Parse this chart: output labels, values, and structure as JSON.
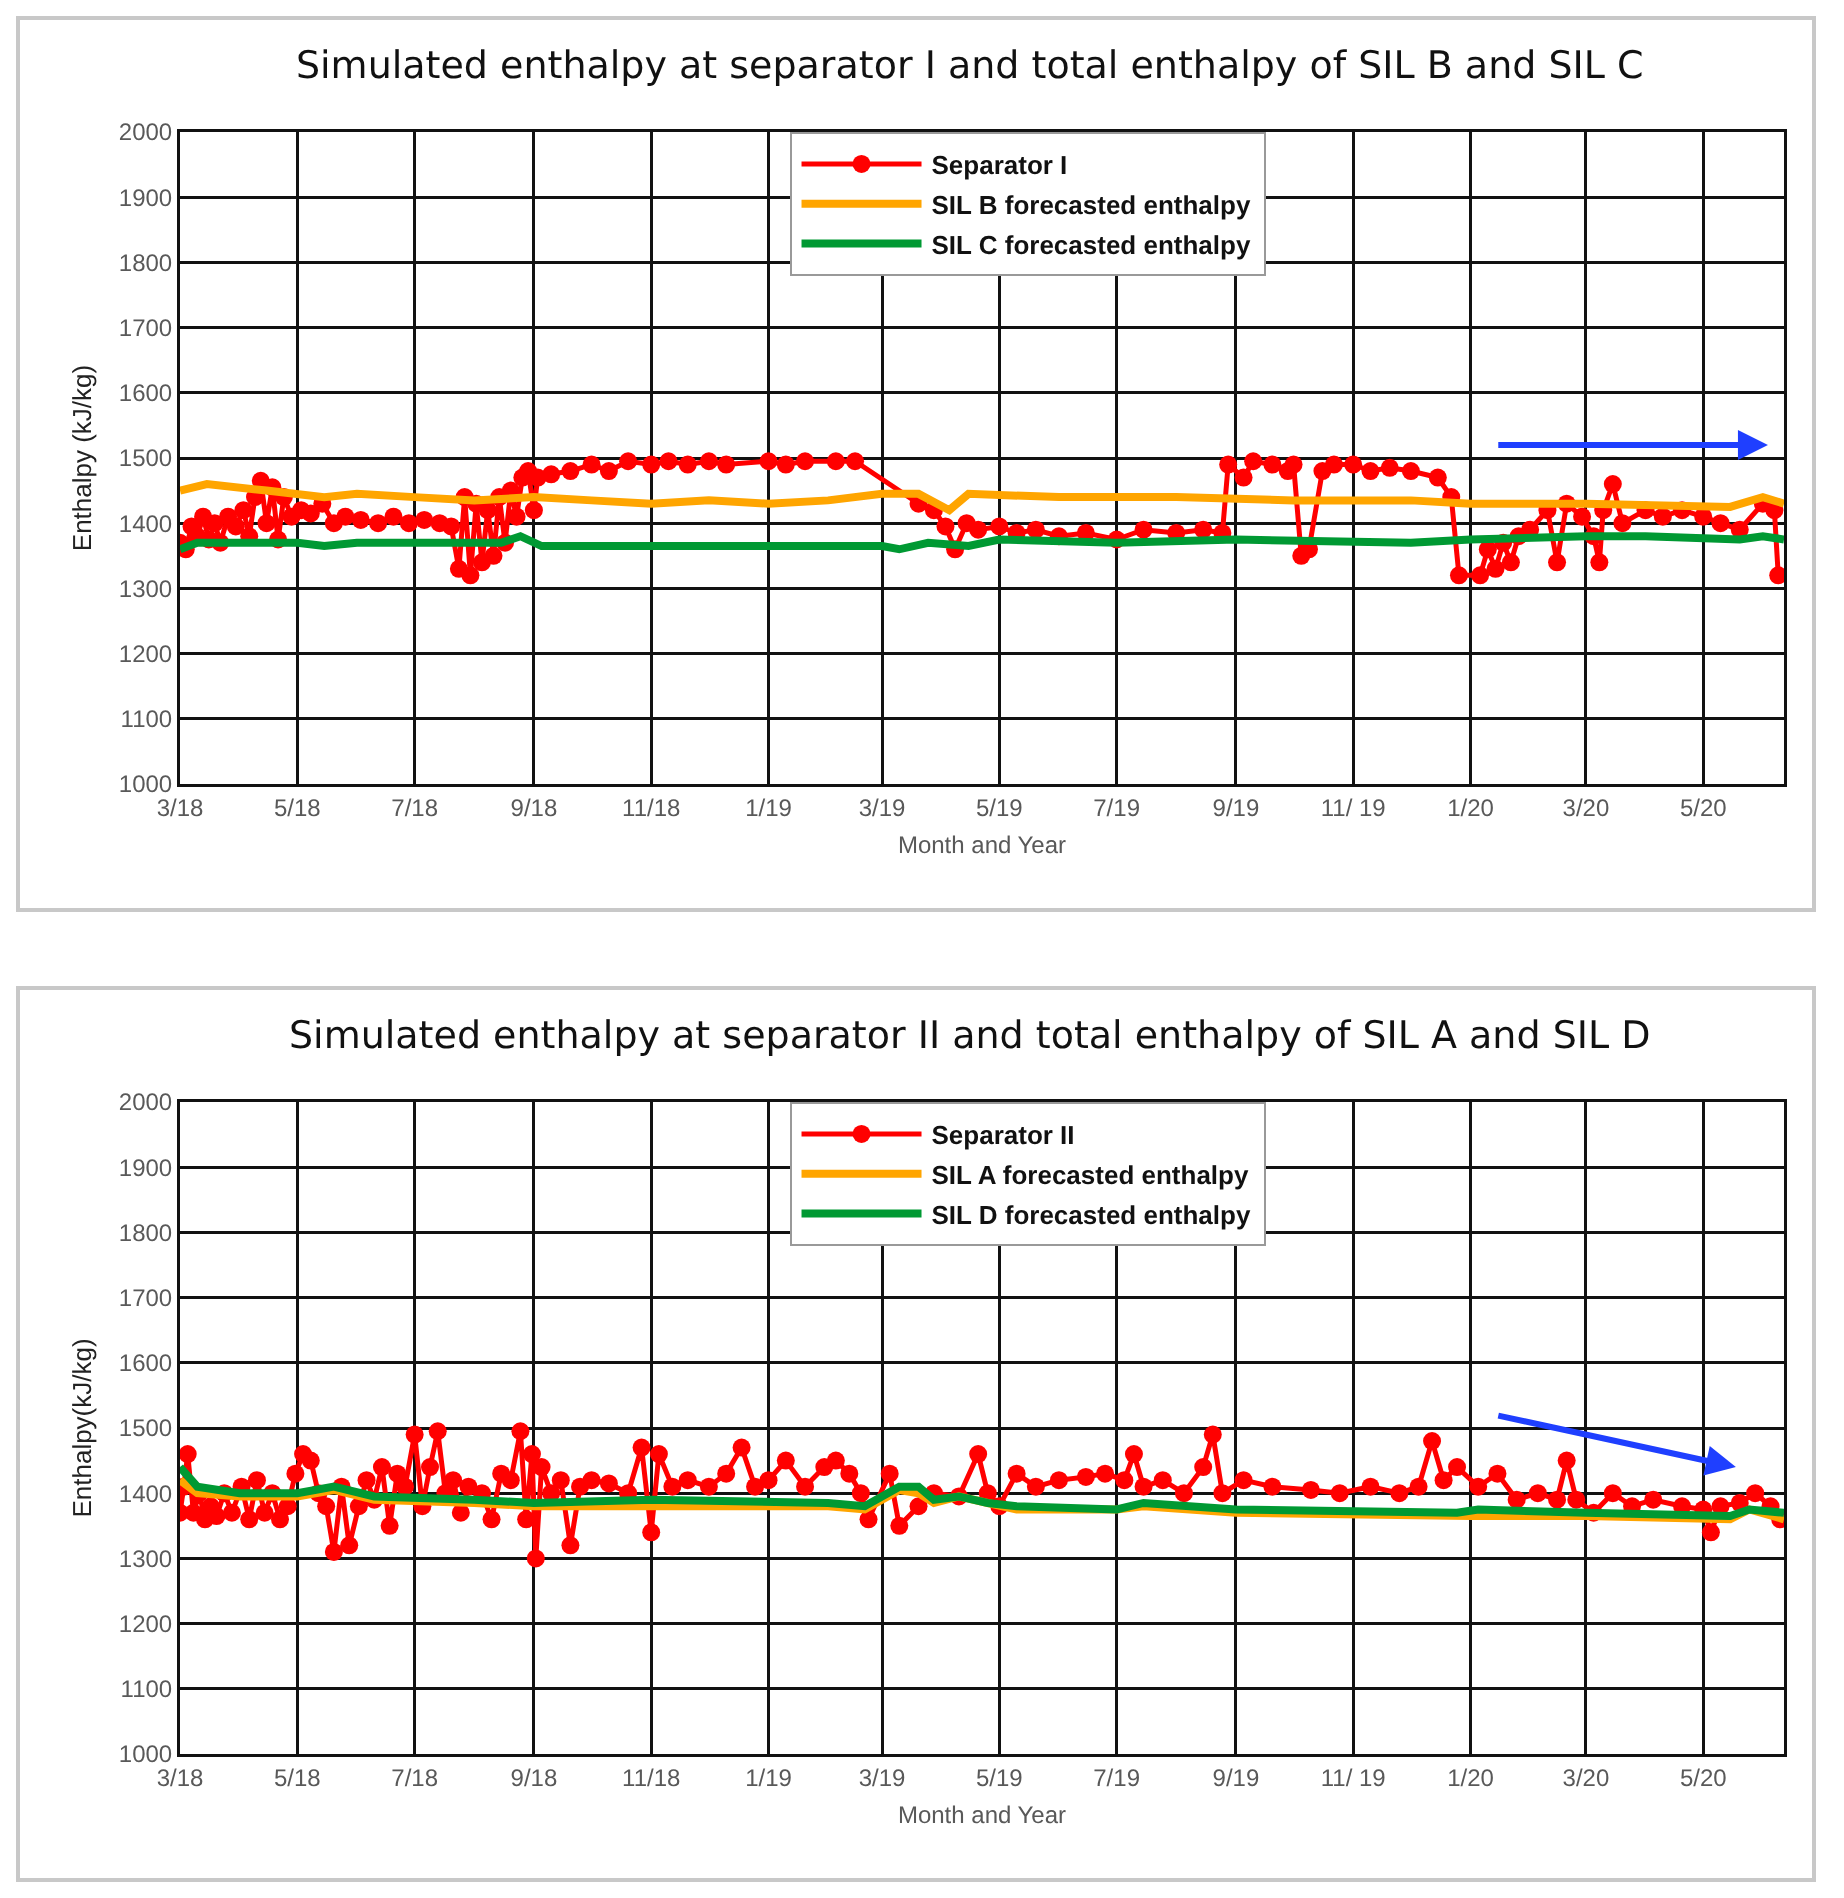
{
  "chart_data": [
    {
      "type": "line",
      "title": "Simulated enthalpy at separator I and total enthalpy of SIL B and SIL C",
      "xlabel": "Month and Year",
      "ylabel": "Enthalpy (kJ/kg)",
      "xlim": [
        "2018-03-01",
        "2020-06-12"
      ],
      "xticks": [
        {
          "value": "2018-03-01",
          "label": "3/18"
        },
        {
          "value": "2018-05-01",
          "label": "5/18"
        },
        {
          "value": "2018-07-01",
          "label": "7/18"
        },
        {
          "value": "2018-09-01",
          "label": "9/18"
        },
        {
          "value": "2018-11-01",
          "label": "11/18"
        },
        {
          "value": "2019-01-01",
          "label": "1/19"
        },
        {
          "value": "2019-03-01",
          "label": "3/19"
        },
        {
          "value": "2019-05-01",
          "label": "5/19"
        },
        {
          "value": "2019-07-01",
          "label": "7/19"
        },
        {
          "value": "2019-09-01",
          "label": "9/19"
        },
        {
          "value": "2019-11-01",
          "label": "11/ 19"
        },
        {
          "value": "2020-01-01",
          "label": "1/20"
        },
        {
          "value": "2020-03-01",
          "label": "3/20"
        },
        {
          "value": "2020-05-01",
          "label": "5/20"
        }
      ],
      "ylim": [
        1000,
        2000
      ],
      "yticks": [
        1000,
        1100,
        1200,
        1300,
        1400,
        1500,
        1600,
        1700,
        1800,
        1900,
        2000
      ],
      "grid": true,
      "legend": "top",
      "series": [
        {
          "name": "Separator I",
          "color": "#ff0000",
          "marker": "circle",
          "x": [
            "2018-03-01",
            "2018-03-04",
            "2018-03-07",
            "2018-03-10",
            "2018-03-13",
            "2018-03-16",
            "2018-03-19",
            "2018-03-22",
            "2018-03-26",
            "2018-03-30",
            "2018-04-03",
            "2018-04-06",
            "2018-04-09",
            "2018-04-12",
            "2018-04-15",
            "2018-04-18",
            "2018-04-21",
            "2018-04-24",
            "2018-04-28",
            "2018-05-03",
            "2018-05-08",
            "2018-05-14",
            "2018-05-20",
            "2018-05-26",
            "2018-06-03",
            "2018-06-12",
            "2018-06-20",
            "2018-06-28",
            "2018-07-06",
            "2018-07-14",
            "2018-07-20",
            "2018-07-24",
            "2018-07-27",
            "2018-07-30",
            "2018-08-02",
            "2018-08-05",
            "2018-08-08",
            "2018-08-11",
            "2018-08-14",
            "2018-08-17",
            "2018-08-20",
            "2018-08-23",
            "2018-08-26",
            "2018-08-29",
            "2018-09-01",
            "2018-09-03",
            "2018-09-10",
            "2018-09-20",
            "2018-10-01",
            "2018-10-10",
            "2018-10-20",
            "2018-11-01",
            "2018-11-10",
            "2018-11-20",
            "2018-12-01",
            "2018-12-10",
            "2019-01-01",
            "2019-01-10",
            "2019-01-20",
            "2019-02-05",
            "2019-02-15",
            "2019-03-20",
            "2019-03-28",
            "2019-04-03",
            "2019-04-08",
            "2019-04-14",
            "2019-04-20",
            "2019-05-01",
            "2019-05-10",
            "2019-05-20",
            "2019-06-01",
            "2019-06-15",
            "2019-07-01",
            "2019-07-15",
            "2019-08-01",
            "2019-08-15",
            "2019-08-25",
            "2019-08-28",
            "2019-09-05",
            "2019-09-10",
            "2019-09-20",
            "2019-09-28",
            "2019-10-01",
            "2019-10-05",
            "2019-10-09",
            "2019-10-16",
            "2019-10-22",
            "2019-11-01",
            "2019-11-10",
            "2019-11-20",
            "2019-12-01",
            "2019-12-15",
            "2019-12-22",
            "2019-12-26",
            "2020-01-06",
            "2020-01-10",
            "2020-01-14",
            "2020-01-18",
            "2020-01-22",
            "2020-01-26",
            "2020-02-01",
            "2020-02-10",
            "2020-02-15",
            "2020-02-20",
            "2020-02-28",
            "2020-03-05",
            "2020-03-08",
            "2020-03-10",
            "2020-03-15",
            "2020-03-20",
            "2020-04-01",
            "2020-04-10",
            "2020-04-20",
            "2020-05-01",
            "2020-05-10",
            "2020-05-20",
            "2020-06-01",
            "2020-06-07",
            "2020-06-09"
          ],
          "values": [
            1370,
            1360,
            1395,
            1380,
            1410,
            1375,
            1400,
            1370,
            1410,
            1395,
            1420,
            1380,
            1440,
            1465,
            1400,
            1455,
            1375,
            1440,
            1410,
            1420,
            1415,
            1430,
            1400,
            1410,
            1405,
            1400,
            1410,
            1400,
            1405,
            1400,
            1395,
            1330,
            1440,
            1320,
            1430,
            1340,
            1420,
            1350,
            1440,
            1370,
            1450,
            1410,
            1470,
            1480,
            1420,
            1470,
            1475,
            1480,
            1490,
            1480,
            1495,
            1490,
            1495,
            1490,
            1495,
            1490,
            1495,
            1490,
            1495,
            1495,
            1495,
            1430,
            1420,
            1395,
            1360,
            1400,
            1390,
            1395,
            1385,
            1390,
            1380,
            1385,
            1375,
            1390,
            1385,
            1390,
            1385,
            1490,
            1470,
            1495,
            1490,
            1480,
            1490,
            1350,
            1360,
            1480,
            1490,
            1490,
            1480,
            1485,
            1480,
            1470,
            1440,
            1320,
            1320,
            1360,
            1330,
            1370,
            1340,
            1380,
            1390,
            1420,
            1340,
            1430,
            1410,
            1380,
            1340,
            1420,
            1460,
            1400,
            1420,
            1410,
            1420,
            1410,
            1400,
            1390,
            1430,
            1420,
            1320
          ]
        },
        {
          "name": "SIL B forecasted enthalpy",
          "color": "#ffa500",
          "marker": "none",
          "x": [
            "2018-03-01",
            "2018-03-15",
            "2018-04-15",
            "2018-05-15",
            "2018-06-01",
            "2018-07-01",
            "2018-08-01",
            "2018-09-01",
            "2018-10-01",
            "2018-11-01",
            "2018-12-01",
            "2019-01-01",
            "2019-02-01",
            "2019-03-01",
            "2019-03-20",
            "2019-04-05",
            "2019-04-15",
            "2019-06-01",
            "2019-08-01",
            "2019-10-01",
            "2019-12-01",
            "2020-01-01",
            "2020-03-01",
            "2020-05-15",
            "2020-06-01",
            "2020-06-12"
          ],
          "values": [
            1450,
            1460,
            1450,
            1440,
            1445,
            1440,
            1435,
            1440,
            1435,
            1430,
            1435,
            1430,
            1435,
            1445,
            1445,
            1420,
            1445,
            1440,
            1440,
            1435,
            1435,
            1430,
            1430,
            1425,
            1440,
            1430
          ]
        },
        {
          "name": "SIL C forecasted enthalpy",
          "color": "#009933",
          "marker": "none",
          "x": [
            "2018-03-01",
            "2018-03-10",
            "2018-05-01",
            "2018-05-15",
            "2018-06-01",
            "2018-08-15",
            "2018-08-25",
            "2018-09-05",
            "2019-03-01",
            "2019-03-10",
            "2019-03-25",
            "2019-04-15",
            "2019-05-01",
            "2019-07-01",
            "2019-09-01",
            "2019-12-01",
            "2020-01-01",
            "2020-03-01",
            "2020-04-01",
            "2020-05-20",
            "2020-06-01",
            "2020-06-12"
          ],
          "values": [
            1360,
            1370,
            1370,
            1365,
            1370,
            1370,
            1380,
            1365,
            1365,
            1360,
            1370,
            1365,
            1375,
            1370,
            1375,
            1370,
            1375,
            1380,
            1380,
            1375,
            1380,
            1375
          ]
        }
      ]
    },
    {
      "type": "line",
      "title": "Simulated enthalpy at separator II and total enthalpy of SIL A and SIL D",
      "xlabel": "Month and Year",
      "ylabel": "Enthalpy(kJ/kg)",
      "xlim": [
        "2018-03-01",
        "2020-06-12"
      ],
      "xticks": [
        {
          "value": "2018-03-01",
          "label": "3/18"
        },
        {
          "value": "2018-05-01",
          "label": "5/18"
        },
        {
          "value": "2018-07-01",
          "label": "7/18"
        },
        {
          "value": "2018-09-01",
          "label": "9/18"
        },
        {
          "value": "2018-11-01",
          "label": "11/18"
        },
        {
          "value": "2019-01-01",
          "label": "1/19"
        },
        {
          "value": "2019-03-01",
          "label": "3/19"
        },
        {
          "value": "2019-05-01",
          "label": "5/19"
        },
        {
          "value": "2019-07-01",
          "label": "7/19"
        },
        {
          "value": "2019-09-01",
          "label": "9/19"
        },
        {
          "value": "2019-11-01",
          "label": "11/ 19"
        },
        {
          "value": "2020-01-01",
          "label": "1/20"
        },
        {
          "value": "2020-03-01",
          "label": "3/20"
        },
        {
          "value": "2020-05-01",
          "label": "5/20"
        }
      ],
      "ylim": [
        1000,
        2000
      ],
      "yticks": [
        1000,
        1100,
        1200,
        1300,
        1400,
        1500,
        1600,
        1700,
        1800,
        1900,
        2000
      ],
      "grid": true,
      "legend": "top",
      "series": [
        {
          "name": "Separator II",
          "color": "#ff0000",
          "marker": "circle",
          "x": [
            "2018-03-01",
            "2018-03-03",
            "2018-03-05",
            "2018-03-08",
            "2018-03-11",
            "2018-03-14",
            "2018-03-17",
            "2018-03-20",
            "2018-03-24",
            "2018-03-28",
            "2018-04-02",
            "2018-04-06",
            "2018-04-10",
            "2018-04-14",
            "2018-04-18",
            "2018-04-22",
            "2018-04-26",
            "2018-04-30",
            "2018-05-04",
            "2018-05-08",
            "2018-05-12",
            "2018-05-16",
            "2018-05-20",
            "2018-05-24",
            "2018-05-28",
            "2018-06-02",
            "2018-06-06",
            "2018-06-10",
            "2018-06-14",
            "2018-06-18",
            "2018-06-22",
            "2018-06-26",
            "2018-07-01",
            "2018-07-05",
            "2018-07-09",
            "2018-07-13",
            "2018-07-17",
            "2018-07-21",
            "2018-07-25",
            "2018-07-29",
            "2018-08-05",
            "2018-08-10",
            "2018-08-15",
            "2018-08-20",
            "2018-08-25",
            "2018-08-28",
            "2018-08-31",
            "2018-09-02",
            "2018-09-05",
            "2018-09-10",
            "2018-09-15",
            "2018-09-20",
            "2018-09-25",
            "2018-10-01",
            "2018-10-10",
            "2018-10-20",
            "2018-10-27",
            "2018-11-01",
            "2018-11-05",
            "2018-11-12",
            "2018-11-20",
            "2018-12-01",
            "2018-12-10",
            "2018-12-18",
            "2018-12-25",
            "2019-01-01",
            "2019-01-10",
            "2019-01-20",
            "2019-01-30",
            "2019-02-05",
            "2019-02-12",
            "2019-02-18",
            "2019-02-22",
            "2019-03-05",
            "2019-03-10",
            "2019-03-20",
            "2019-03-28",
            "2019-04-10",
            "2019-04-20",
            "2019-04-25",
            "2019-05-01",
            "2019-05-10",
            "2019-05-20",
            "2019-06-01",
            "2019-06-15",
            "2019-06-25",
            "2019-07-05",
            "2019-07-10",
            "2019-07-15",
            "2019-07-25",
            "2019-08-05",
            "2019-08-15",
            "2019-08-20",
            "2019-08-25",
            "2019-09-05",
            "2019-09-20",
            "2019-10-10",
            "2019-10-25",
            "2019-11-10",
            "2019-11-25",
            "2019-12-05",
            "2019-12-12",
            "2019-12-18",
            "2019-12-25",
            "2020-01-05",
            "2020-01-15",
            "2020-01-25",
            "2020-02-05",
            "2020-02-15",
            "2020-02-20",
            "2020-02-25",
            "2020-03-05",
            "2020-03-15",
            "2020-03-25",
            "2020-04-05",
            "2020-04-20",
            "2020-05-01",
            "2020-05-05",
            "2020-05-10",
            "2020-05-20",
            "2020-05-28",
            "2020-06-05",
            "2020-06-10"
          ],
          "values": [
            1370,
            1410,
            1460,
            1370,
            1400,
            1360,
            1380,
            1365,
            1400,
            1370,
            1410,
            1360,
            1420,
            1370,
            1400,
            1360,
            1380,
            1430,
            1460,
            1450,
            1400,
            1380,
            1310,
            1410,
            1320,
            1380,
            1420,
            1390,
            1440,
            1350,
            1430,
            1410,
            1490,
            1380,
            1440,
            1495,
            1400,
            1420,
            1370,
            1410,
            1400,
            1360,
            1430,
            1420,
            1495,
            1360,
            1460,
            1300,
            1440,
            1400,
            1420,
            1320,
            1410,
            1420,
            1415,
            1400,
            1470,
            1340,
            1460,
            1410,
            1420,
            1410,
            1430,
            1470,
            1410,
            1420,
            1450,
            1410,
            1440,
            1450,
            1430,
            1400,
            1360,
            1430,
            1350,
            1380,
            1400,
            1395,
            1460,
            1400,
            1380,
            1430,
            1410,
            1420,
            1425,
            1430,
            1420,
            1460,
            1410,
            1420,
            1400,
            1440,
            1490,
            1400,
            1420,
            1410,
            1405,
            1400,
            1410,
            1400,
            1410,
            1480,
            1420,
            1440,
            1410,
            1430,
            1390,
            1400,
            1390,
            1450,
            1390,
            1370,
            1400,
            1380,
            1390,
            1380,
            1375,
            1340,
            1380,
            1385,
            1400,
            1380,
            1360
          ]
        },
        {
          "name": "SIL A forecasted enthalpy",
          "color": "#ffa500",
          "marker": "none",
          "x": [
            "2018-03-01",
            "2018-03-10",
            "2018-04-01",
            "2018-05-01",
            "2018-05-20",
            "2018-06-10",
            "2018-08-01",
            "2018-09-01",
            "2019-02-01",
            "2019-02-20",
            "2019-03-10",
            "2019-03-20",
            "2019-03-28",
            "2019-04-10",
            "2019-04-25",
            "2019-05-10",
            "2019-07-01",
            "2019-07-15",
            "2019-09-01",
            "2020-01-01",
            "2020-03-01",
            "2020-05-15",
            "2020-05-25",
            "2020-06-12"
          ],
          "values": [
            1420,
            1400,
            1395,
            1395,
            1405,
            1390,
            1385,
            1380,
            1380,
            1375,
            1405,
            1400,
            1385,
            1395,
            1385,
            1375,
            1375,
            1380,
            1370,
            1365,
            1365,
            1360,
            1375,
            1360
          ]
        },
        {
          "name": "SIL D forecasted enthalpy",
          "color": "#009933",
          "marker": "none",
          "x": [
            "2018-03-01",
            "2018-03-10",
            "2018-04-01",
            "2018-05-01",
            "2018-05-20",
            "2018-06-10",
            "2018-08-01",
            "2018-09-01",
            "2018-11-01",
            "2019-02-01",
            "2019-02-20",
            "2019-03-10",
            "2019-03-20",
            "2019-03-28",
            "2019-04-10",
            "2019-04-25",
            "2019-05-10",
            "2019-07-01",
            "2019-07-15",
            "2019-09-01",
            "2019-12-25",
            "2020-01-05",
            "2020-03-01",
            "2020-05-15",
            "2020-05-25",
            "2020-06-12"
          ],
          "values": [
            1440,
            1410,
            1400,
            1400,
            1410,
            1395,
            1390,
            1385,
            1390,
            1385,
            1380,
            1410,
            1410,
            1390,
            1395,
            1385,
            1380,
            1375,
            1385,
            1375,
            1370,
            1375,
            1370,
            1365,
            1375,
            1370
          ]
        }
      ]
    }
  ]
}
